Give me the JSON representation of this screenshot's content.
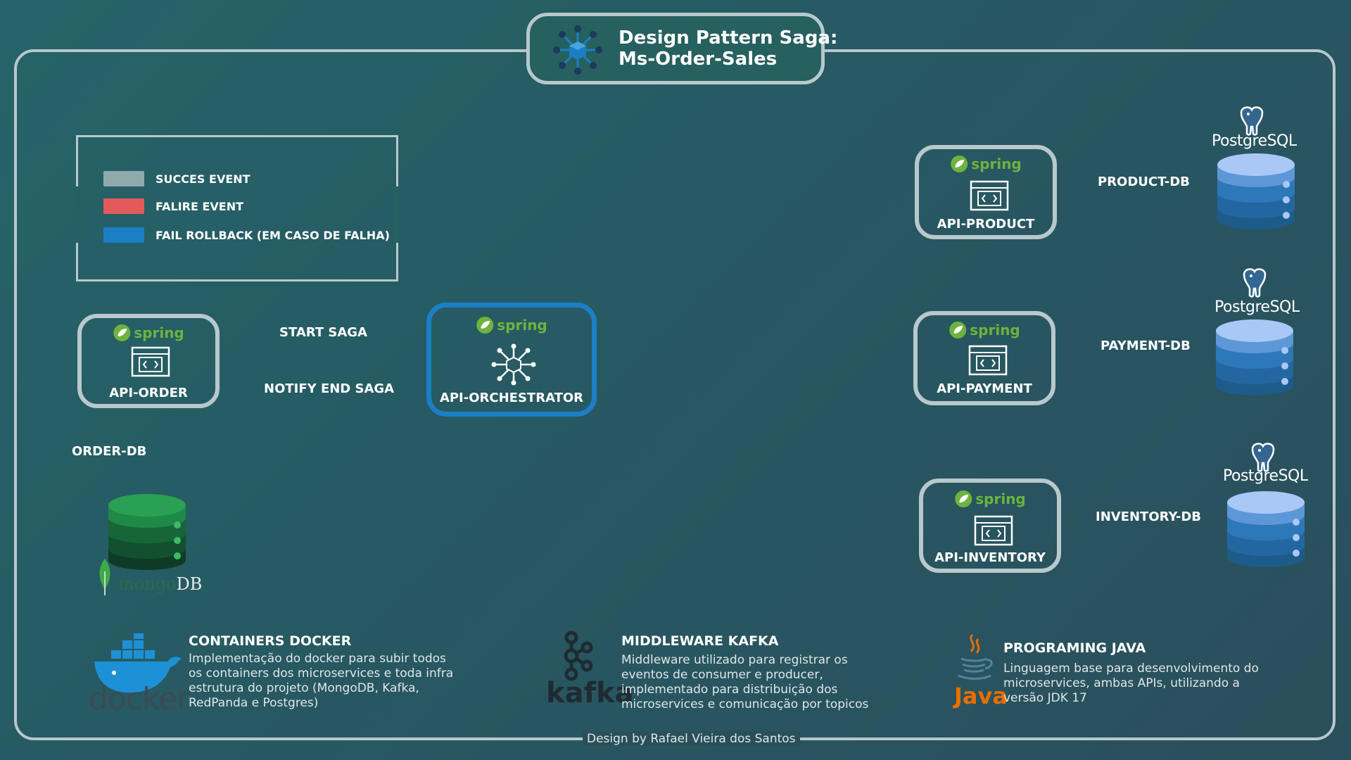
{
  "title": {
    "line1": "Design Pattern Saga:",
    "line2": "Ms-Order-Sales"
  },
  "legend": {
    "items": [
      {
        "label": "SUCCES EVENT",
        "color": "#8fa9ad"
      },
      {
        "label": "FALIRE EVENT",
        "color": "#e35a5a"
      },
      {
        "label": "FAIL ROLLBACK (EM CASO DE FALHA)",
        "color": "#1b7fc6"
      }
    ]
  },
  "spring_text": "spring",
  "services": {
    "order": "API-ORDER",
    "orchestrator": "API-ORCHESTRATOR",
    "product": "API-PRODUCT",
    "payment": "API-PAYMENT",
    "inventory": "API-INVENTORY"
  },
  "saga": {
    "start": "START SAGA",
    "notify_end": "NOTIFY END SAGA"
  },
  "databases": {
    "order_db": "ORDER-DB",
    "product_db": "PRODUCT-DB",
    "payment_db": "PAYMENT-DB",
    "inventory_db": "INVENTORY-DB",
    "postgres_text": "PostgreSQL",
    "mongo_text_a": "mongo",
    "mongo_text_b": "DB"
  },
  "sections": {
    "docker": {
      "title": "CONTAINERS DOCKER",
      "logo_text": "docker",
      "lines": [
        "Implementação do docker para subir todos",
        "os containers dos microservices e toda infra",
        "estrutura do projeto (MongoDB, Kafka,",
        "RedPanda e Postgres)"
      ]
    },
    "kafka": {
      "title": "MIDDLEWARE KAFKA",
      "logo_text": "kafka",
      "lines": [
        "Middleware utilizado para registrar os",
        "eventos de consumer e producer,",
        "implementado para distribuição dos",
        "microservices e comunicação por topicos"
      ]
    },
    "java": {
      "title": "PROGRAMING JAVA",
      "logo_text": "Java",
      "lines": [
        "Linguagem base para desenvolvimento do",
        "microservices, ambas APIs, utilizando a",
        "versão JDK 17"
      ]
    }
  },
  "footer": "Design by Rafael Vieira dos Santos",
  "colors": {
    "border": "#b8c8cc",
    "orchestrator_border": "#1b7fc6",
    "spring_green": "#6db33f",
    "postgres_light": "#a9c8f5",
    "postgres_mid": "#2d78b8",
    "postgres_dark": "#1d5b8a",
    "mongo_green": "#1f8a48"
  }
}
